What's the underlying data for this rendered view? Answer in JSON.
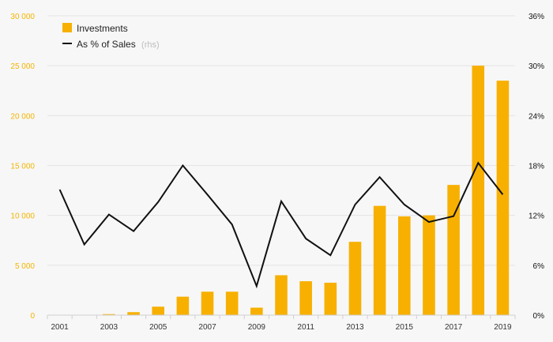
{
  "chart_data": {
    "type": "bar+line",
    "x": [
      2001,
      2002,
      2003,
      2004,
      2005,
      2006,
      2007,
      2008,
      2009,
      2010,
      2011,
      2012,
      2013,
      2014,
      2015,
      2016,
      2017,
      2018,
      2019
    ],
    "x_tick_labels": [
      "2001",
      "2003",
      "2005",
      "2007",
      "2009",
      "2011",
      "2013",
      "2015",
      "2017",
      "2019"
    ],
    "left_axis": {
      "ylim": [
        0,
        30000
      ],
      "tick_labels": [
        "0",
        "5 000",
        "10 000",
        "15 000",
        "20 000",
        "25 000",
        "30 000"
      ],
      "tick_values": [
        0,
        5000,
        10000,
        15000,
        20000,
        25000,
        30000
      ]
    },
    "right_axis": {
      "ylim": [
        0,
        36
      ],
      "tick_labels": [
        "0%",
        "6%",
        "12%",
        "18%",
        "24%",
        "30%",
        "36%"
      ],
      "tick_values": [
        0,
        6,
        12,
        18,
        24,
        30,
        36
      ]
    },
    "series": [
      {
        "name": "Investments",
        "type": "bar",
        "axis": "left",
        "color": "#f7b000",
        "values": [
          0,
          0,
          100,
          300,
          850,
          1850,
          2350,
          2350,
          750,
          4000,
          3400,
          3250,
          7350,
          10950,
          9900,
          10000,
          13050,
          25000,
          23500
        ]
      },
      {
        "name": "As % of Sales",
        "name_suffix": "(rhs)",
        "type": "line",
        "axis": "right",
        "color": "#111111",
        "values": [
          15.1,
          8.5,
          12.1,
          10.1,
          13.6,
          18.0,
          14.5,
          10.9,
          3.5,
          13.7,
          9.2,
          7.2,
          13.3,
          16.6,
          13.3,
          11.2,
          11.9,
          18.3,
          14.5
        ]
      }
    ],
    "legend_position": "top-left",
    "grid": true
  }
}
